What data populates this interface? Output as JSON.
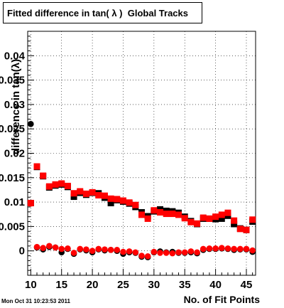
{
  "title": "Fitted difference in tan( λ )  Global Tracks",
  "timestamp": "Mon Oct 31 10:23:53 2011",
  "chart_data": {
    "type": "scatter",
    "title": "Fitted difference in tan( λ )  Global Tracks",
    "xlabel": "No. of Fit Points",
    "ylabel": "difference in tan(λ)",
    "xlim": [
      9.5,
      46.5
    ],
    "ylim": [
      -0.005,
      0.045
    ],
    "x_ticks": [
      10,
      15,
      20,
      25,
      30,
      35,
      40,
      45
    ],
    "x_tick_labels": [
      "10",
      "15",
      "20",
      "25",
      "30",
      "35",
      "40",
      "45"
    ],
    "y_ticks": [
      0,
      0.005,
      0.01,
      0.015,
      0.02,
      0.025,
      0.03,
      0.035,
      0.04
    ],
    "y_tick_labels": [
      "0",
      "0.005",
      "0.01",
      "0.015",
      "0.02",
      "0.025",
      "0.03",
      "0.035",
      "0.04"
    ],
    "grid": true,
    "series": [
      {
        "color": "#000000",
        "marker": "square",
        "x": [
          10,
          11,
          12,
          13,
          14,
          15,
          16,
          17,
          18,
          19,
          20,
          21,
          22,
          23,
          24,
          25,
          26,
          27,
          28,
          29,
          30,
          31,
          32,
          33,
          34,
          35,
          36,
          37,
          38,
          39,
          40,
          41,
          42,
          43,
          44,
          45,
          46
        ],
        "y": [
          0.0098,
          0.0172,
          0.0153,
          0.013,
          0.0134,
          0.0136,
          0.0131,
          0.0111,
          0.0119,
          0.0115,
          0.0119,
          0.0118,
          0.0109,
          0.0098,
          0.0104,
          0.0101,
          0.0097,
          0.009,
          0.0079,
          0.0071,
          0.0081,
          0.0085,
          0.0082,
          0.0081,
          0.0078,
          0.007,
          0.0061,
          0.0055,
          0.0066,
          0.0066,
          0.0065,
          0.0066,
          0.0072,
          0.0055,
          0.0046,
          0.0043,
          0.006
        ]
      },
      {
        "color": "#ff0000",
        "marker": "square",
        "x": [
          10,
          11,
          12,
          13,
          14,
          15,
          16,
          17,
          18,
          19,
          20,
          21,
          22,
          23,
          24,
          25,
          26,
          27,
          28,
          29,
          30,
          31,
          32,
          33,
          34,
          35,
          36,
          37,
          38,
          39,
          40,
          41,
          42,
          43,
          44,
          45,
          46
        ],
        "y": [
          0.0098,
          0.0173,
          0.0154,
          0.0132,
          0.0136,
          0.0138,
          0.0133,
          0.0118,
          0.0122,
          0.0117,
          0.012,
          0.0114,
          0.0113,
          0.0107,
          0.0106,
          0.0103,
          0.0099,
          0.0094,
          0.0074,
          0.0066,
          0.0083,
          0.0079,
          0.0076,
          0.0076,
          0.0074,
          0.0067,
          0.0059,
          0.0056,
          0.0068,
          0.0066,
          0.007,
          0.0074,
          0.0078,
          0.0062,
          0.0045,
          0.0043,
          0.0064
        ]
      },
      {
        "color": "#000000",
        "marker": "circle",
        "x": [
          10,
          11,
          12,
          13,
          14,
          15,
          16,
          17,
          18,
          19,
          20,
          21,
          22,
          23,
          24,
          25,
          26,
          27,
          28,
          29,
          30,
          31,
          32,
          33,
          34,
          35,
          36,
          37,
          38,
          39,
          40,
          41,
          42,
          43,
          44,
          45,
          46
        ],
        "y": [
          0.026,
          0.0007,
          0.0003,
          0.0008,
          0.0007,
          -0.0003,
          0.0004,
          -0.0006,
          0.0003,
          0.0001,
          -0.0003,
          0.0003,
          0.0001,
          0.0002,
          0.0,
          -0.0006,
          -0.0003,
          -0.0004,
          -0.0012,
          -0.0013,
          -0.0003,
          -0.0001,
          -0.0003,
          -0.0002,
          -0.0004,
          -0.0004,
          -0.0003,
          -0.0005,
          0.0002,
          0.0004,
          0.0004,
          0.0005,
          0.0004,
          0.0002,
          0.0003,
          0.0003,
          -0.0002
        ]
      },
      {
        "color": "#ff0000",
        "marker": "circle",
        "x": [
          10,
          11,
          12,
          13,
          14,
          15,
          16,
          17,
          18,
          19,
          20,
          21,
          22,
          23,
          24,
          25,
          26,
          27,
          28,
          29,
          30,
          31,
          32,
          33,
          34,
          35,
          36,
          37,
          38,
          39,
          40,
          41,
          42,
          43,
          44,
          45,
          46
        ],
        "y": [
          0.0097,
          0.0008,
          0.0006,
          0.001,
          0.0007,
          0.0004,
          0.0005,
          -0.0004,
          0.0004,
          0.0003,
          0.0,
          0.0004,
          0.0003,
          0.0002,
          0.0002,
          -0.0002,
          -0.0001,
          -0.0003,
          -0.001,
          -0.0011,
          -0.0002,
          -0.0004,
          -0.0004,
          -0.0005,
          -0.0003,
          -0.0003,
          -0.0001,
          -0.0003,
          0.0004,
          0.0005,
          0.0005,
          0.0006,
          0.0005,
          0.0004,
          0.0004,
          0.0004,
          0.0001
        ]
      }
    ]
  }
}
